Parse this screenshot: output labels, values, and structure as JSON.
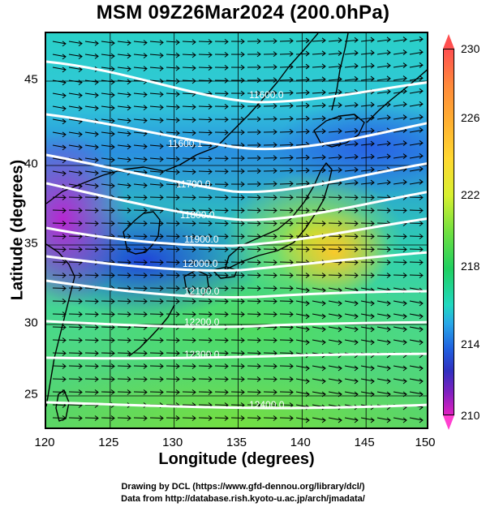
{
  "title": "MSM 09Z26Mar2024 (200.0hPa)",
  "x_axis": {
    "label": "Longitude (degrees)",
    "range": [
      120,
      150
    ],
    "ticks": [
      "120",
      "125",
      "130",
      "135",
      "140",
      "145",
      "150"
    ]
  },
  "y_axis": {
    "label": "Latitude  (degrees)",
    "range": [
      22.5,
      47.5
    ],
    "ticks": [
      "25",
      "30",
      "35",
      "40",
      "45"
    ]
  },
  "colorbar": {
    "range": [
      210,
      230
    ],
    "labels": [
      "230",
      "226",
      "222",
      "218",
      "214",
      "210"
    ]
  },
  "contours": [
    {
      "label": "11600.0"
    },
    {
      "label": "11600.1"
    },
    {
      "label": "11700.0"
    },
    {
      "label": "11800.0"
    },
    {
      "label": "11900.0"
    },
    {
      "label": "12000.0"
    },
    {
      "label": "12100.0"
    },
    {
      "label": "12200.0"
    },
    {
      "label": "12300.0"
    },
    {
      "label": "12400.0"
    }
  ],
  "credits": {
    "line1": "Drawing by DCL (https://www.gfd-dennou.org/library/dcl/)",
    "line2": "Data from http://database.rish.kyoto-u.ac.jp/arch/jmadata/"
  },
  "colors": {
    "contour": "#ffffff",
    "coastline": "#000000",
    "vector": "#000000"
  }
}
